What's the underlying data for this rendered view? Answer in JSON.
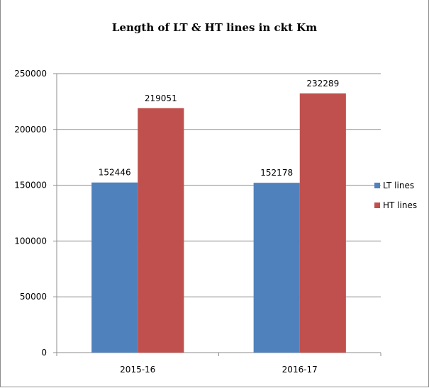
{
  "chart_data": {
    "type": "bar",
    "title": "Length of LT & HT lines in ckt Km",
    "categories": [
      "2015-16",
      "2016-17"
    ],
    "series": [
      {
        "name": "LT lines",
        "values": [
          152446,
          152178
        ],
        "color": "#4F81BD"
      },
      {
        "name": "HT lines",
        "values": [
          219051,
          232289
        ],
        "color": "#C0504D"
      }
    ],
    "ylim": [
      0,
      250000
    ],
    "yticks": [
      "0",
      "50000",
      "100000",
      "150000",
      "200000",
      "250000"
    ],
    "grid": true,
    "legend_position": "right"
  }
}
